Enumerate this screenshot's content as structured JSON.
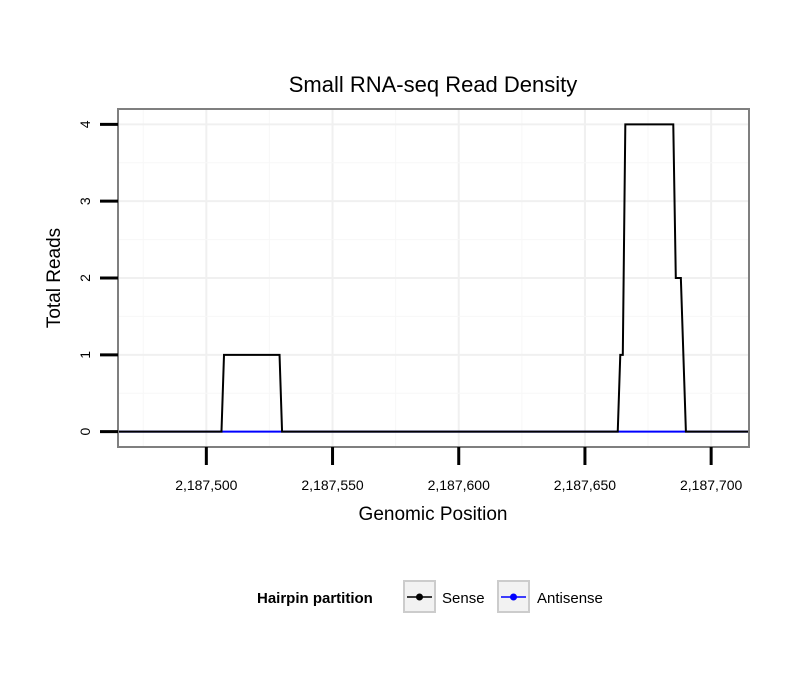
{
  "chart_data": {
    "type": "line",
    "title": "Small RNA-seq Read Density",
    "xlabel": "Genomic Position",
    "ylabel": "Total Reads",
    "xlim": [
      2187465,
      2187715
    ],
    "ylim": [
      -0.2,
      4.2
    ],
    "x_ticks": [
      2187500,
      2187550,
      2187600,
      2187650,
      2187700
    ],
    "x_tick_labels": [
      "2,187,500",
      "2,187,550",
      "2,187,600",
      "2,187,650",
      "2,187,700"
    ],
    "y_ticks": [
      0,
      1,
      2,
      3,
      4
    ],
    "y_tick_labels": [
      "0",
      "1",
      "2",
      "3",
      "4"
    ],
    "grid": true,
    "legend": {
      "title": "Hairpin partition",
      "position": "bottom"
    },
    "series": [
      {
        "name": "Antisense",
        "color": "#0000ff",
        "points": [
          [
            2187465,
            0
          ],
          [
            2187715,
            0
          ]
        ]
      },
      {
        "name": "Sense",
        "color": "#000000",
        "points": [
          [
            2187465,
            0
          ],
          [
            2187506,
            0
          ],
          [
            2187507,
            1
          ],
          [
            2187529,
            1
          ],
          [
            2187530,
            0
          ],
          [
            2187663,
            0
          ],
          [
            2187664,
            1
          ],
          [
            2187665,
            1
          ],
          [
            2187666,
            4
          ],
          [
            2187685,
            4
          ],
          [
            2187686,
            2
          ],
          [
            2187688,
            2
          ],
          [
            2187690,
            0
          ],
          [
            2187715,
            0
          ]
        ]
      }
    ]
  }
}
